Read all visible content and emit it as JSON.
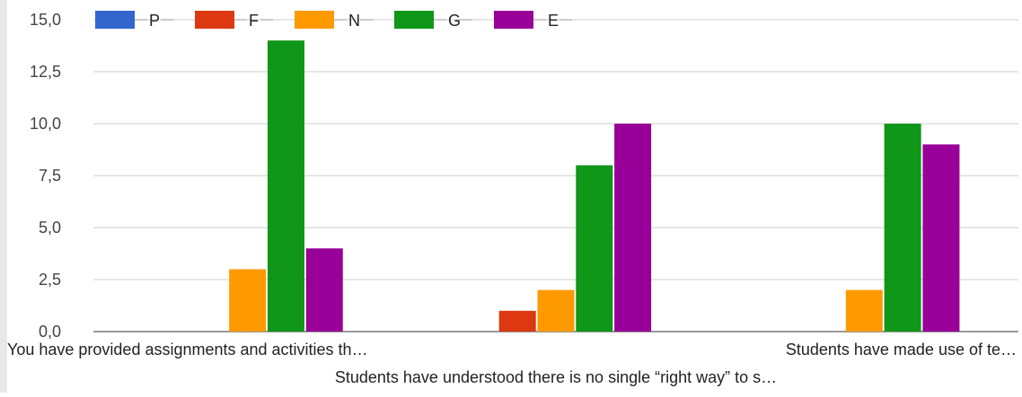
{
  "chart_data": {
    "type": "bar",
    "categories": [
      "You have provided assignments and activities th…",
      "Students have understood there is no single “right way” to s…",
      "Students have made use of te…"
    ],
    "series": [
      {
        "name": "P",
        "color": "#3366cc",
        "values": [
          0,
          0,
          0
        ]
      },
      {
        "name": "F",
        "color": "#dc3912",
        "values": [
          0,
          1,
          0
        ]
      },
      {
        "name": "N",
        "color": "#ff9900",
        "values": [
          3,
          2,
          2
        ]
      },
      {
        "name": "G",
        "color": "#109618",
        "values": [
          14,
          8,
          10
        ]
      },
      {
        "name": "E",
        "color": "#990099",
        "values": [
          4,
          10,
          9
        ]
      }
    ],
    "yticks": [
      "0,0",
      "2,5",
      "5,0",
      "7,5",
      "10,0",
      "12,5",
      "15,0"
    ],
    "ylim": [
      0,
      15
    ],
    "grid": true,
    "legend": "top-left"
  }
}
